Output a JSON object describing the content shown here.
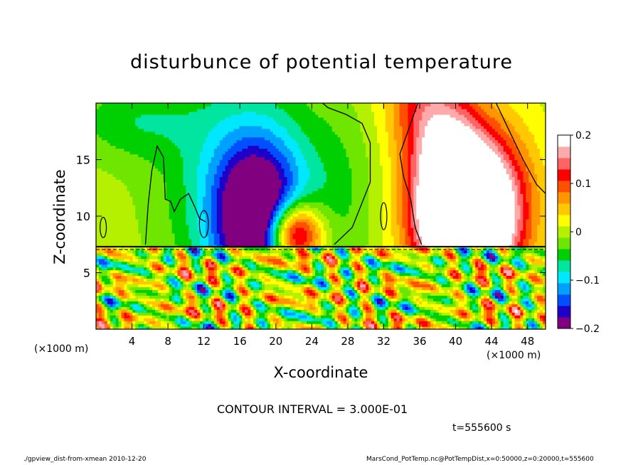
{
  "chart_data": {
    "type": "heatmap",
    "title": "disturbunce of potential temperature",
    "xlabel": "X-coordinate",
    "ylabel": "Z-coordinate",
    "x_unit_left": "(×1000 m)",
    "x_unit_right": "(×1000 m)",
    "xlim": [
      0,
      50
    ],
    "ylim": [
      0,
      20
    ],
    "x_ticks": [
      4,
      8,
      12,
      16,
      20,
      24,
      28,
      32,
      36,
      40,
      44,
      48
    ],
    "y_ticks": [
      5,
      10,
      15
    ],
    "colorbar": {
      "min": -0.2,
      "max": 0.2,
      "ticks": [
        {
          "value": 0.2,
          "label": "0.2"
        },
        {
          "value": 0.1,
          "label": "0.1"
        },
        {
          "value": 0,
          "label": "0"
        },
        {
          "value": -0.1,
          "label": "−0.1"
        },
        {
          "value": -0.2,
          "label": "−0.2"
        }
      ],
      "colors": [
        "#800080",
        "#1e00c8",
        "#0050ff",
        "#00a0ff",
        "#00e8ff",
        "#00e6a0",
        "#00d000",
        "#6ee600",
        "#b4f000",
        "#ffff00",
        "#ffc800",
        "#ff9600",
        "#ff5000",
        "#ff0000",
        "#ff6464",
        "#ffaaaa",
        "#ffffff"
      ]
    },
    "upper_field": {
      "z_range": [
        7.3,
        20
      ],
      "sources": [
        {
          "x": 18.0,
          "z": 9.5,
          "value": -0.22,
          "sx": 3.4,
          "sz": 4.8,
          "tilt": 0.0
        },
        {
          "x": 16.0,
          "z": 13.0,
          "value": -0.08,
          "sx": 6.0,
          "sz": 7.0,
          "tilt": 0.0
        },
        {
          "x": 22.0,
          "z": 8.4,
          "value": 0.26,
          "sx": 2.2,
          "sz": 2.0,
          "tilt": 0.0
        },
        {
          "x": 40.5,
          "z": 9.5,
          "value": 0.34,
          "sx": 3.6,
          "sz": 4.0,
          "tilt": 0.0
        },
        {
          "x": 39.0,
          "z": 16.0,
          "value": 0.18,
          "sx": 3.5,
          "sz": 6.0,
          "tilt": -0.35
        },
        {
          "x": 45.0,
          "z": 12.0,
          "value": 0.08,
          "sx": 3.5,
          "sz": 5.0,
          "tilt": 0.0
        },
        {
          "x": 4.0,
          "z": 18.5,
          "value": -0.05,
          "sx": 5.0,
          "sz": 2.5,
          "tilt": 0.0
        },
        {
          "x": 27.0,
          "z": 12.0,
          "value": -0.03,
          "sx": 3.0,
          "sz": 6.0,
          "tilt": 0.0
        }
      ]
    },
    "lower_field": {
      "z_range": [
        0,
        7.3
      ],
      "value_amplitude": 0.15
    },
    "contour_lines": {
      "zero_contours": [
        [
          [
            5.5,
            7.5
          ],
          [
            5.8,
            11
          ],
          [
            6.2,
            14
          ],
          [
            6.8,
            16.2
          ],
          [
            7.5,
            15.2
          ],
          [
            7.6,
            13.5
          ],
          [
            7.7,
            11.5
          ],
          [
            8.3,
            11.3
          ],
          [
            8.7,
            10.4
          ],
          [
            9.4,
            11.5
          ],
          [
            10.3,
            12.0
          ],
          [
            11.0,
            10.8
          ],
          [
            11.5,
            9.8
          ],
          [
            12.2,
            9.5
          ]
        ],
        [
          [
            26.5,
            7.5
          ],
          [
            28.5,
            9.0
          ],
          [
            30.5,
            13.0
          ],
          [
            30.5,
            16.5
          ],
          [
            29.6,
            18.2
          ],
          [
            27.8,
            19.0
          ],
          [
            25.8,
            19.6
          ],
          [
            25.2,
            20
          ]
        ],
        [
          [
            35.8,
            20
          ],
          [
            34.6,
            17.3
          ],
          [
            33.8,
            15.5
          ],
          [
            34.2,
            13.5
          ],
          [
            35.0,
            11.5
          ],
          [
            35.5,
            9.0
          ],
          [
            36.2,
            7.5
          ]
        ],
        [
          [
            44.5,
            20
          ],
          [
            46.0,
            17.5
          ],
          [
            47.5,
            15.0
          ],
          [
            49.0,
            12.8
          ],
          [
            50,
            12.0
          ]
        ]
      ],
      "small_loops": [
        {
          "x": 12.0,
          "z": 9.3,
          "rx": 0.5,
          "rz": 1.2
        },
        {
          "x": 32.0,
          "z": 10.0,
          "rx": 0.35,
          "rz": 1.2
        },
        {
          "x": 0.8,
          "z": 9.0,
          "rx": 0.35,
          "rz": 0.9
        }
      ],
      "layer_boundary_z": 7.3
    }
  },
  "labels": {
    "contour_interval": "CONTOUR INTERVAL = 3.000E-01",
    "time": "t=555600 s",
    "footer_left": "./gpview_dist-from-xmean  2010-12-20",
    "footer_right": "MarsCond_PotTemp.nc@PotTempDist,x=0:50000,z=0:20000,t=555600"
  }
}
